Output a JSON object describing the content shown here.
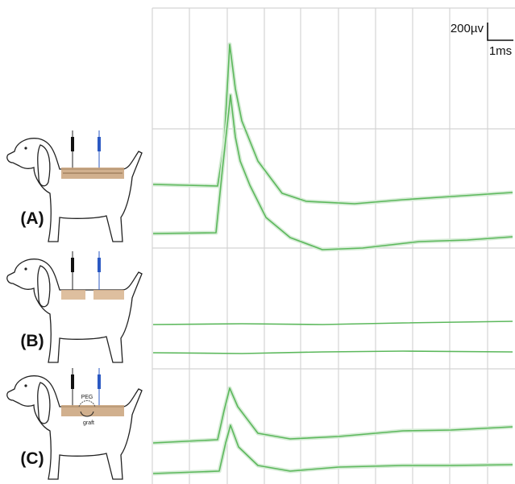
{
  "scale_bar": {
    "voltage": "200µv",
    "time": "1ms"
  },
  "dogs": [
    {
      "label": "(A)"
    },
    {
      "label": "(B)"
    },
    {
      "label": "(C)",
      "annotations": [
        "PEG",
        "graft"
      ]
    }
  ]
}
